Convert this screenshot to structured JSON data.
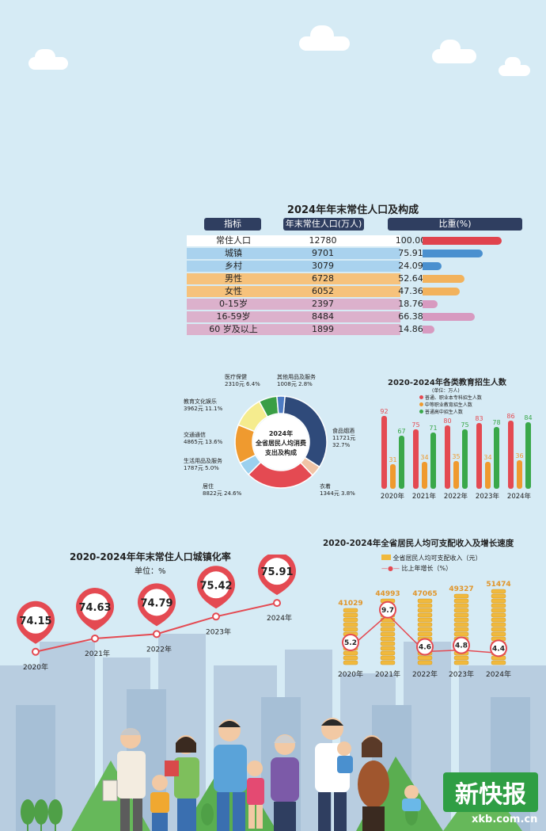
{
  "population_table": {
    "title": "2024年年末常住人口及构成",
    "headers": [
      "指标",
      "年末常住人口(万人)",
      "比重(%)"
    ],
    "rows": [
      {
        "label": "常住人口",
        "value": "12780",
        "share": "100.00",
        "pct": 100.0,
        "color": "#e0434d",
        "bg": "#ffffff"
      },
      {
        "label": "城镇",
        "value": "9701",
        "share": "75.91",
        "pct": 75.91,
        "color": "#4a90cf",
        "bg": "#a9d2ee"
      },
      {
        "label": "乡村",
        "value": "3079",
        "share": "24.09",
        "pct": 24.09,
        "color": "#4a90cf",
        "bg": "#a9d2ee"
      },
      {
        "label": "男性",
        "value": "6728",
        "share": "52.64",
        "pct": 52.64,
        "color": "#f2b25c",
        "bg": "#f6c27c"
      },
      {
        "label": "女性",
        "value": "6052",
        "share": "47.36",
        "pct": 47.36,
        "color": "#f2b25c",
        "bg": "#f6c27c"
      },
      {
        "label": "0-15岁",
        "value": "2397",
        "share": "18.76",
        "pct": 18.76,
        "color": "#d79ac0",
        "bg": "#dcb1cc"
      },
      {
        "label": "16-59岁",
        "value": "8484",
        "share": "66.38",
        "pct": 66.38,
        "color": "#d79ac0",
        "bg": "#dcb1cc"
      },
      {
        "label": "60 岁及以上",
        "value": "1899",
        "share": "14.86",
        "pct": 14.86,
        "color": "#d79ac0",
        "bg": "#dcb1cc"
      }
    ]
  },
  "consumption": {
    "center_title": [
      "2024年",
      "全省居民人均消费",
      "支出及构成"
    ],
    "slices": [
      {
        "name": "食品烟酒",
        "line2": "11721元",
        "line3": "32.7%",
        "pct": 32.7,
        "color": "#2f4a7a"
      },
      {
        "name": "衣着",
        "line2": "1344元  3.8%",
        "line3": "",
        "pct": 3.8,
        "color": "#f0c3a5"
      },
      {
        "name": "居住",
        "line2": "8822元  24.6%",
        "line3": "",
        "pct": 24.6,
        "color": "#e44a52"
      },
      {
        "name": "生活用品及服务",
        "line2": "1787元  5.0%",
        "line3": "",
        "pct": 5.0,
        "color": "#9bd0ee"
      },
      {
        "name": "交通通信",
        "line2": "4865元  13.6%",
        "line3": "",
        "pct": 13.6,
        "color": "#ef9a2f"
      },
      {
        "name": "教育文化娱乐",
        "line2": "3962元  11.1%",
        "line3": "",
        "pct": 11.1,
        "color": "#f5ec8e"
      },
      {
        "name": "医疗保健",
        "line2": "2310元  6.4%",
        "line3": "",
        "pct": 6.4,
        "color": "#3a9e45"
      },
      {
        "name": "其他用品及服务",
        "line2": "1008元  2.8%",
        "line3": "",
        "pct": 2.8,
        "color": "#4d7bc4"
      }
    ]
  },
  "chart_data": [
    {
      "type": "bar",
      "title": "2020-2024年各类教育招生人数",
      "unit": "(单位：万人)",
      "categories": [
        "2020年",
        "2021年",
        "2022年",
        "2023年",
        "2024年"
      ],
      "series": [
        {
          "name": "普通、职业本专科招生人数",
          "values": [
            92,
            75,
            80,
            83,
            86
          ],
          "color": "#e44a52"
        },
        {
          "name": "中等职业教育招生人数",
          "values": [
            31,
            34,
            35,
            34,
            36
          ],
          "color": "#ef9a2f"
        },
        {
          "name": "普通高中招生人数",
          "values": [
            67,
            71,
            75,
            78,
            84
          ],
          "color": "#3aa84a"
        }
      ]
    },
    {
      "type": "line",
      "title": "2020-2024年年末常住人口城镇化率",
      "unit": "单位：%",
      "categories": [
        "2020年",
        "2021年",
        "2022年",
        "2023年",
        "2024年"
      ],
      "values": [
        "74.15",
        "74.63",
        "74.79",
        "75.42",
        "75.91"
      ],
      "color": "#e44a52"
    },
    {
      "type": "bar",
      "title": "2020-2024年全省居民人均可支配收入及增长速度",
      "categories": [
        "2020年",
        "2021年",
        "2022年",
        "2023年",
        "2024年"
      ],
      "series": [
        {
          "name": "全省居民人均可支配收入（元）",
          "values": [
            41029,
            44993,
            47065,
            49327,
            51474
          ],
          "color": "#f0b93d"
        },
        {
          "name": "比上年增长（%）",
          "values": [
            5.2,
            9.7,
            4.6,
            4.8,
            4.4
          ],
          "color": "#e44a52"
        }
      ]
    }
  ],
  "logo": {
    "text": "新快报",
    "url": "xkb.com.cn"
  }
}
